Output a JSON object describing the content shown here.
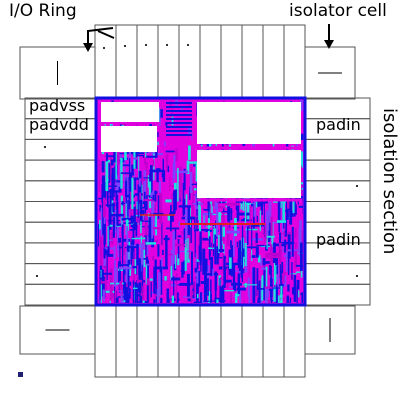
{
  "labels": {
    "io_ring": "I/O Ring",
    "isolator_cell": "isolator cell",
    "padvss": "padvss",
    "padvdd": "padvdd",
    "padin_top": "padin",
    "padin_bottom": "padin",
    "isolation_section": "isolation section"
  },
  "colors": {
    "pad_border": "#555555",
    "core_border": "#1010e0",
    "core_fill": "#e000e0",
    "cyan_cells": "#20e0e0",
    "red_wire": "#e02020",
    "white_block": "#ffffff",
    "dark_marker": "#202070"
  },
  "counts": {
    "top_pads": 10,
    "bottom_pads": 10,
    "left_pads": 10,
    "right_pads": 10
  }
}
